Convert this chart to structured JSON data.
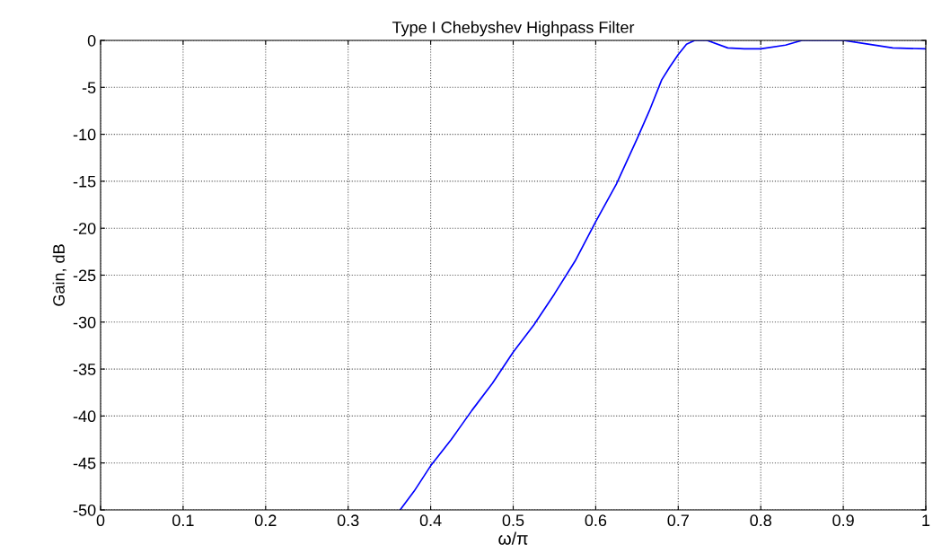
{
  "chart_data": {
    "type": "line",
    "title": "Type I Chebyshev Highpass Filter",
    "xlabel": "ω/π",
    "ylabel": "Gain, dB",
    "xlim": [
      0,
      1
    ],
    "ylim": [
      -50,
      0
    ],
    "xticks": [
      0,
      0.1,
      0.2,
      0.3,
      0.4,
      0.5,
      0.6,
      0.7,
      0.8,
      0.9,
      1
    ],
    "yticks": [
      -50,
      -45,
      -40,
      -35,
      -30,
      -25,
      -20,
      -15,
      -10,
      -5,
      0
    ],
    "grid": true,
    "series": [
      {
        "color": "#0000ff",
        "x": [
          0.363,
          0.38,
          0.4,
          0.425,
          0.45,
          0.475,
          0.5,
          0.525,
          0.55,
          0.575,
          0.6,
          0.625,
          0.65,
          0.665,
          0.68,
          0.69,
          0.7,
          0.71,
          0.72,
          0.735,
          0.76,
          0.78,
          0.8,
          0.83,
          0.85,
          0.9,
          0.93,
          0.96,
          1.0
        ],
        "values": [
          -50,
          -48,
          -45.3,
          -42.5,
          -39.4,
          -36.5,
          -33.2,
          -30.3,
          -27,
          -23.5,
          -19.3,
          -15.3,
          -10.5,
          -7.5,
          -4.2,
          -2.8,
          -1.5,
          -0.4,
          0,
          0,
          -0.8,
          -0.9,
          -0.9,
          -0.5,
          0,
          0,
          -0.4,
          -0.8,
          -0.9
        ]
      }
    ]
  }
}
